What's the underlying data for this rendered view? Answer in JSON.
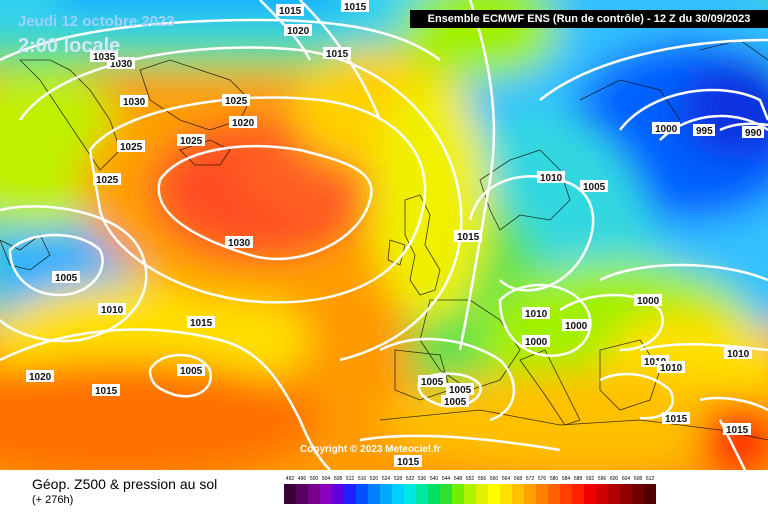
{
  "header": {
    "title": "Ensemble ECMWF ENS  (Run de contrôle)  -  12 Z du 30/09/2023",
    "date": "Jeudi 12 octobre 2023",
    "time": "2:00 locale",
    "copyright": "Copyright © 2023 Meteociel.fr"
  },
  "footer": {
    "title": "Géop. Z500 & pression au sol",
    "subtitle": "(+ 276h)"
  },
  "legend": {
    "values": [
      "492",
      "496",
      "500",
      "504",
      "508",
      "512",
      "516",
      "520",
      "524",
      "528",
      "532",
      "536",
      "540",
      "544",
      "548",
      "552",
      "556",
      "560",
      "564",
      "568",
      "572",
      "576",
      "580",
      "584",
      "588",
      "592",
      "596",
      "600",
      "604",
      "608",
      "612"
    ],
    "colors": [
      "#3a0038",
      "#5a0060",
      "#7a0090",
      "#8a00c0",
      "#6000e0",
      "#2020ff",
      "#0050ff",
      "#0080ff",
      "#00a8ff",
      "#00d0ff",
      "#00e8e0",
      "#00e8a0",
      "#00e060",
      "#30e030",
      "#70f000",
      "#b0f000",
      "#e0f000",
      "#ffff00",
      "#ffe000",
      "#ffc000",
      "#ffa000",
      "#ff8000",
      "#ff6000",
      "#ff4000",
      "#ff2000",
      "#f00000",
      "#d00000",
      "#b00000",
      "#900000",
      "#700000",
      "#500000"
    ]
  },
  "isobars": [
    {
      "text": "1015"
    },
    {
      "text": "1015"
    },
    {
      "text": "1020"
    },
    {
      "text": "1015"
    },
    {
      "text": "1030"
    },
    {
      "text": "1030"
    },
    {
      "text": "1035"
    },
    {
      "text": "1025"
    },
    {
      "text": "1020"
    },
    {
      "text": "1025"
    },
    {
      "text": "1025"
    },
    {
      "text": "1025"
    },
    {
      "text": "1030"
    },
    {
      "text": "1010"
    },
    {
      "text": "1005"
    },
    {
      "text": "1015"
    },
    {
      "text": "1000"
    },
    {
      "text": "995"
    },
    {
      "text": "990"
    },
    {
      "text": "1005"
    },
    {
      "text": "1010"
    },
    {
      "text": "1015"
    },
    {
      "text": "1020"
    },
    {
      "text": "1015"
    },
    {
      "text": "1005"
    },
    {
      "text": "1010"
    },
    {
      "text": "1000"
    },
    {
      "text": "1000"
    },
    {
      "text": "1000"
    },
    {
      "text": "1010"
    },
    {
      "text": "1010"
    },
    {
      "text": "1010"
    },
    {
      "text": "1005"
    },
    {
      "text": "1005"
    },
    {
      "text": "1005"
    },
    {
      "text": "1015"
    },
    {
      "text": "1015"
    },
    {
      "text": "1015"
    },
    {
      "text": "1005"
    }
  ]
}
